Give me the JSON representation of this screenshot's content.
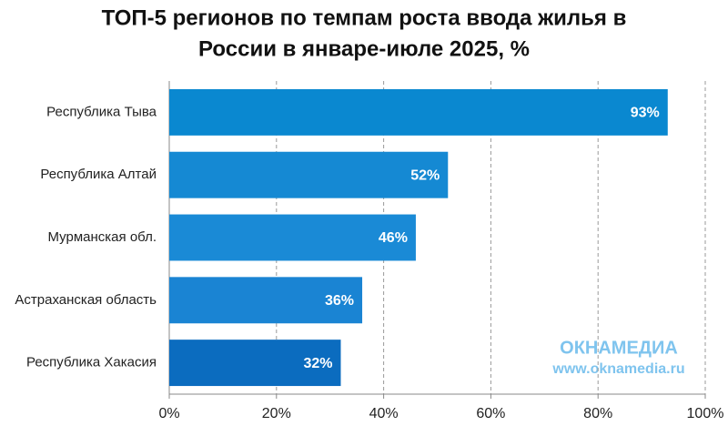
{
  "chart_data": {
    "type": "barh",
    "title": [
      "ТОП-5 регионов по темпам роста ввода жилья в",
      "России в январе-июле 2025, %"
    ],
    "categories": [
      "Республика Тыва",
      "Республика Алтай",
      "Мурманская обл.",
      "Астраханская область",
      "Республика Хакасия"
    ],
    "values": [
      93,
      52,
      46,
      36,
      32
    ],
    "value_labels": [
      "93%",
      "52%",
      "46%",
      "36%",
      "32%"
    ],
    "colors": [
      "#0a88d0",
      "#1589d3",
      "#1a8ad6",
      "#1a84d3",
      "#0b6cbf"
    ],
    "xlim": [
      0,
      100
    ],
    "xticks": [
      {
        "value": 0,
        "label": "0%"
      },
      {
        "value": 20,
        "label": "20%"
      },
      {
        "value": 40,
        "label": "40%"
      },
      {
        "value": 60,
        "label": "60%"
      },
      {
        "value": 80,
        "label": "80%"
      },
      {
        "value": 100,
        "label": "100%"
      }
    ],
    "grid": true,
    "watermark": {
      "brand": "ОКНАМЕДИА",
      "url": "www.oknamedia.ru"
    }
  }
}
